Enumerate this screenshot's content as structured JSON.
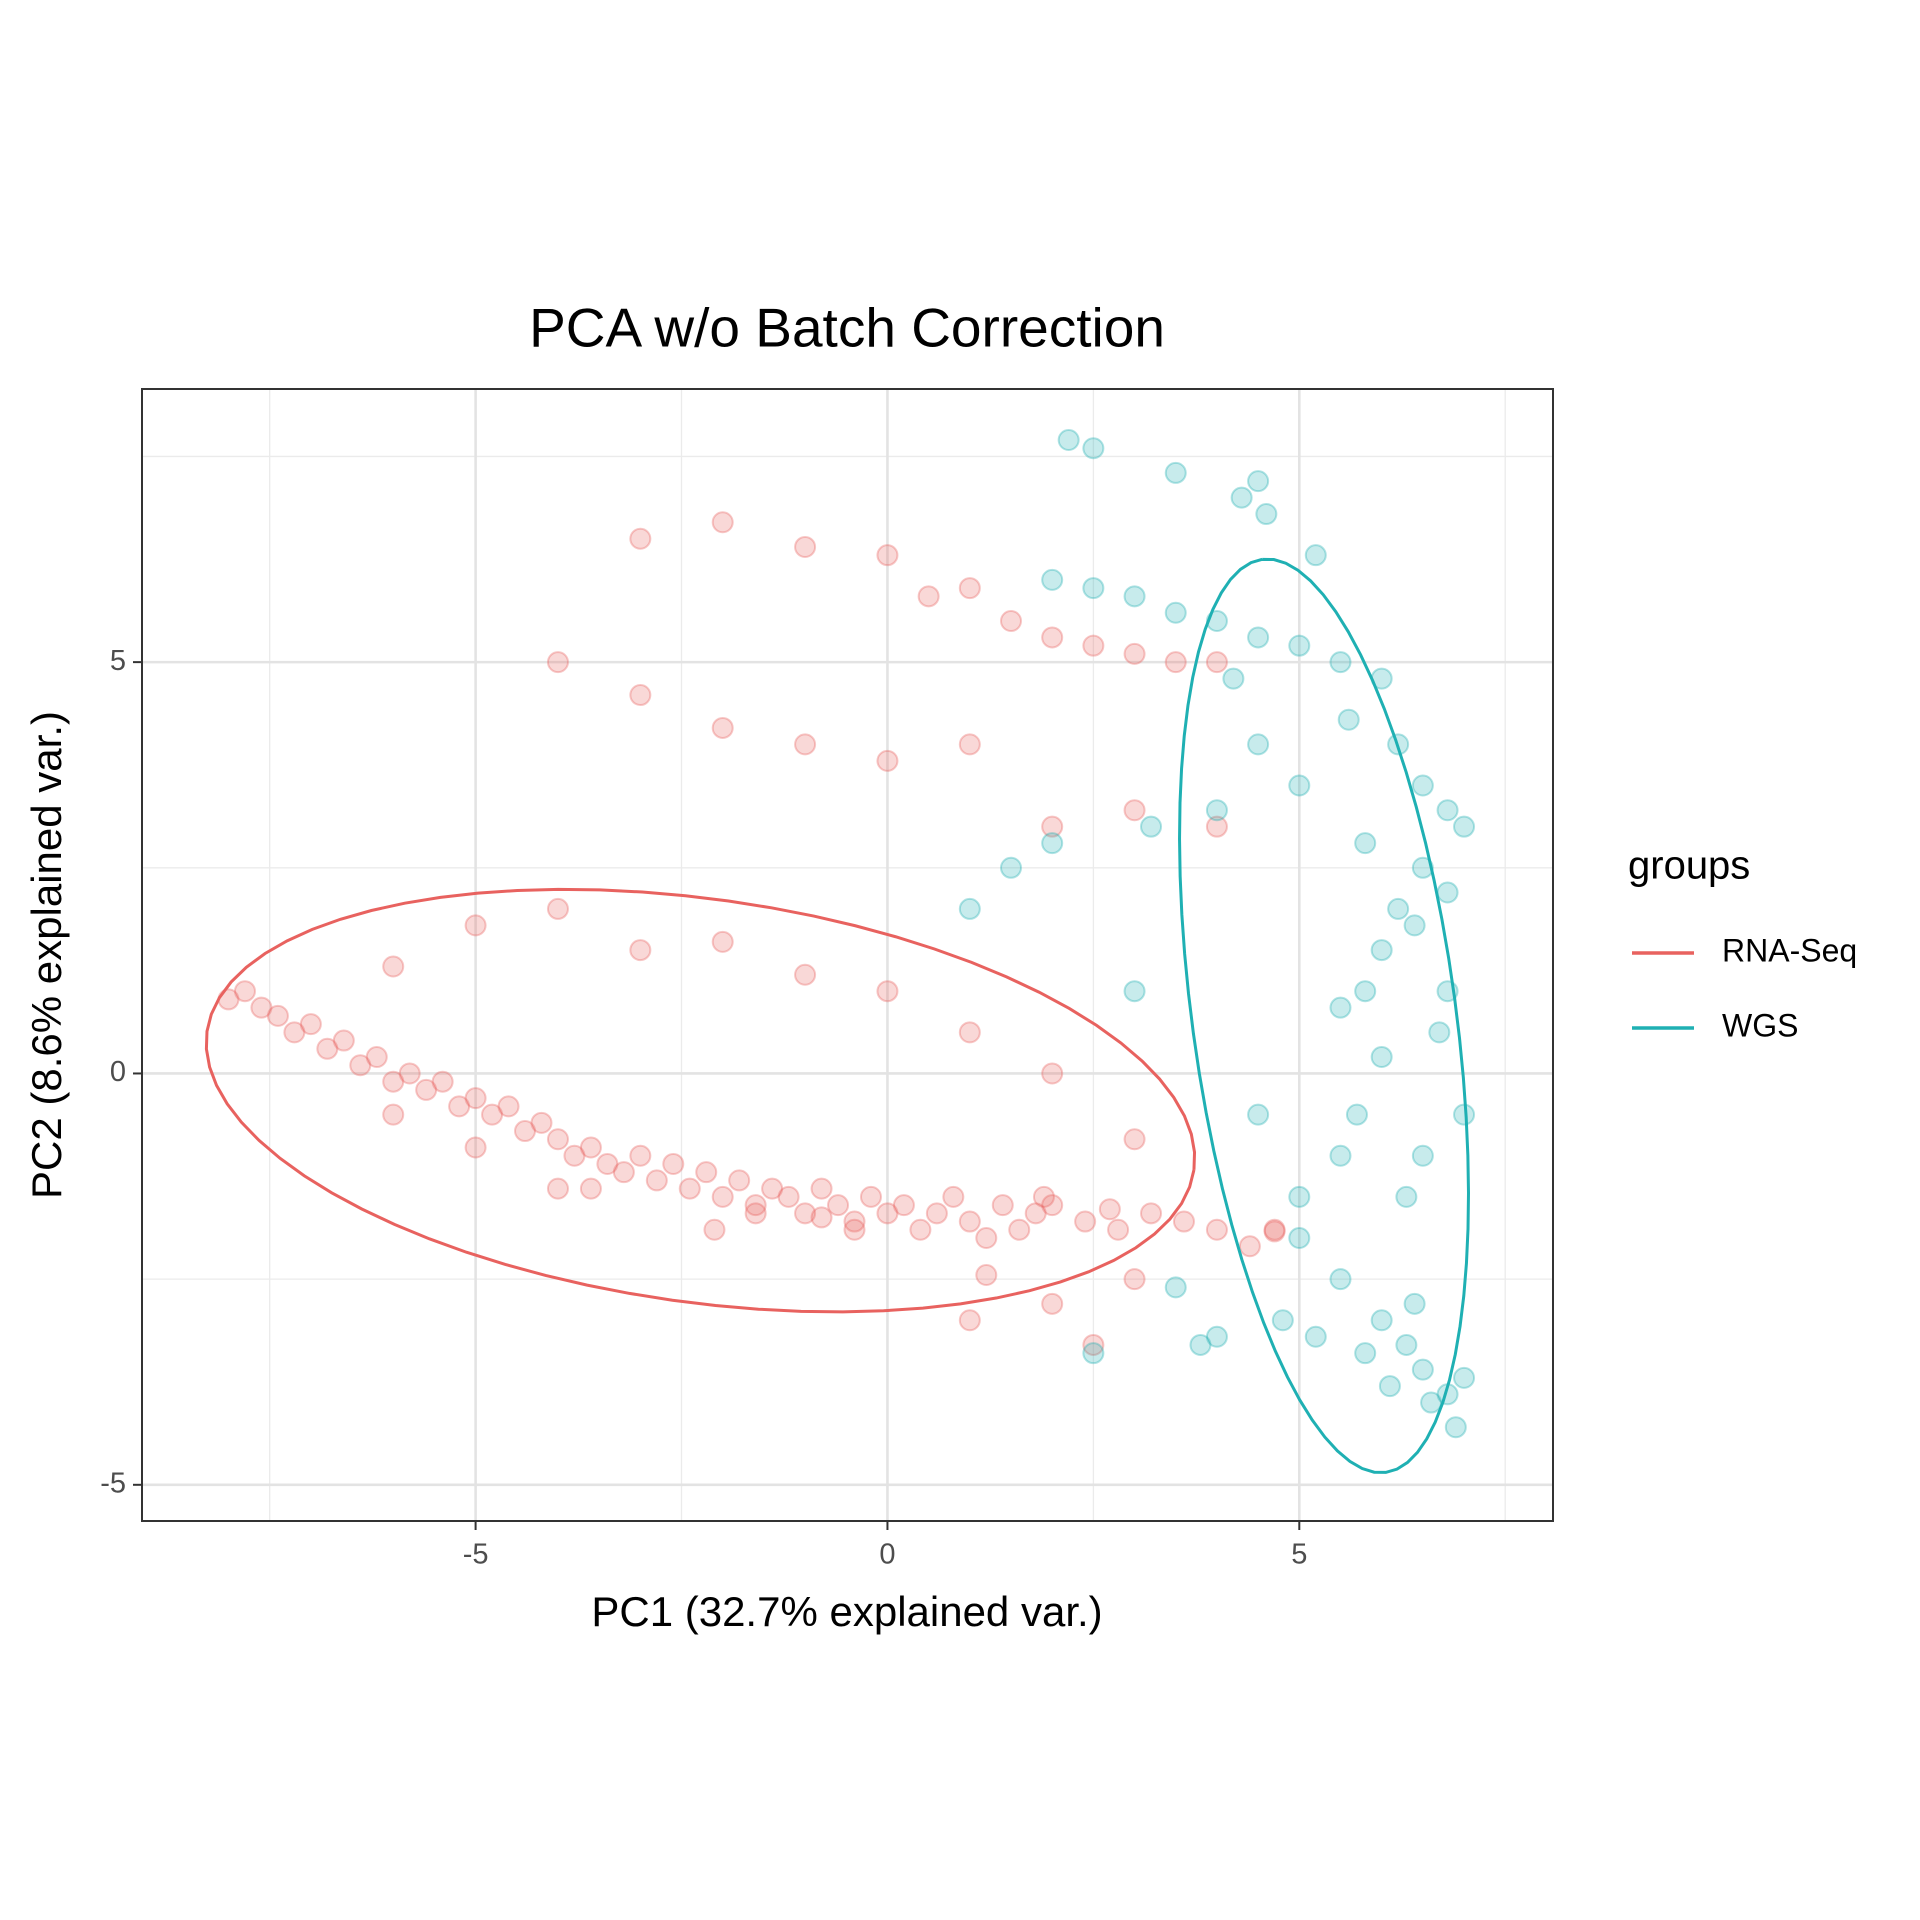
{
  "chart_data": {
    "type": "scatter",
    "title": "PCA w/o Batch Correction",
    "xlabel": "PC1 (32.7% explained var.)",
    "ylabel": "PC2 (8.6% explained var.)",
    "xlim": [
      -9.05,
      8.08
    ],
    "ylim": [
      -5.44,
      8.32
    ],
    "xticks": [
      -5,
      0,
      5
    ],
    "yticks": [
      -5,
      0,
      5
    ],
    "xminorticks": [
      -7.5,
      -2.5,
      2.5,
      7.5
    ],
    "yminorticks": [
      -2.5,
      2.5,
      7.5
    ],
    "grid": true,
    "alpha": 0.25,
    "legend_title": "groups",
    "legend": "right",
    "series": [
      {
        "name": "RNA-Seq",
        "color": "#E8625F",
        "x": [
          -8.0,
          -7.8,
          -7.6,
          -7.4,
          -7.2,
          -7.0,
          -6.8,
          -6.6,
          -6.4,
          -6.2,
          -6.0,
          -5.8,
          -5.6,
          -5.4,
          -5.2,
          -5.0,
          -4.8,
          -4.6,
          -4.4,
          -4.2,
          -4.0,
          -3.8,
          -3.6,
          -3.4,
          -3.2,
          -3.0,
          -2.8,
          -2.6,
          -2.4,
          -2.2,
          -2.0,
          -1.8,
          -1.6,
          -1.4,
          -1.2,
          -1.0,
          -0.8,
          -0.6,
          -0.4,
          -0.2,
          0.0,
          0.2,
          0.4,
          0.6,
          0.8,
          1.0,
          1.2,
          1.4,
          1.6,
          1.8,
          2.0,
          2.4,
          2.8,
          3.2,
          3.6,
          4.0,
          4.4,
          4.7,
          -3.6,
          -2.1,
          -1.6,
          -0.8,
          -0.4,
          1.2,
          1.9,
          2.7,
          4.7,
          -3,
          -2,
          -1,
          0,
          -4,
          -3,
          -2,
          -1,
          0,
          1,
          0.5,
          1,
          1.5,
          2,
          2.5,
          3,
          3.5,
          4,
          -6,
          -5,
          -4,
          -3,
          -2,
          -1,
          0,
          1,
          2,
          3,
          2,
          3,
          4,
          1,
          2,
          3,
          -5,
          -4,
          -6,
          2.5
        ],
        "values": [
          0.9,
          1.0,
          0.8,
          0.7,
          0.5,
          0.6,
          0.3,
          0.4,
          0.1,
          0.2,
          -0.1,
          0.0,
          -0.2,
          -0.1,
          -0.4,
          -0.3,
          -0.5,
          -0.4,
          -0.7,
          -0.6,
          -0.8,
          -1.0,
          -0.9,
          -1.1,
          -1.2,
          -1.0,
          -1.3,
          -1.1,
          -1.4,
          -1.2,
          -1.5,
          -1.3,
          -1.6,
          -1.4,
          -1.5,
          -1.7,
          -1.4,
          -1.6,
          -1.8,
          -1.5,
          -1.7,
          -1.6,
          -1.9,
          -1.7,
          -1.5,
          -1.8,
          -2.0,
          -1.6,
          -1.9,
          -1.7,
          -1.6,
          -1.8,
          -1.9,
          -1.7,
          -1.8,
          -1.9,
          -2.1,
          -1.9,
          -1.4,
          -1.9,
          -1.7,
          -1.75,
          -1.9,
          -2.45,
          -1.5,
          -1.65,
          -1.92,
          6.5,
          6.7,
          6.4,
          6.3,
          5.0,
          4.6,
          4.2,
          4.0,
          3.8,
          4.0,
          5.8,
          5.9,
          5.5,
          5.3,
          5.2,
          5.1,
          5.0,
          5.0,
          1.3,
          1.8,
          2.0,
          1.5,
          1.6,
          1.2,
          1.0,
          0.5,
          0.0,
          -0.8,
          3.0,
          3.2,
          3.0,
          -3.0,
          -2.8,
          -2.5,
          -0.9,
          -1.4,
          -0.5,
          -3.3
        ],
        "ellipse": {
          "center": [
            -2.27,
            -0.33
          ],
          "axes": [
            6.05,
            2.45
          ],
          "angle": -8
        }
      },
      {
        "name": "WGS",
        "color": "#1FB0B3",
        "x": [
          6.8,
          6.5,
          6.2,
          6.0,
          5.8,
          5.5,
          6.0,
          5.7,
          5.5,
          6.3,
          5.0,
          5.5,
          6.0,
          6.3,
          6.5,
          6.8,
          6.1,
          5.8,
          5.2,
          4.8,
          4.0,
          3.8,
          6.6,
          6.9,
          7.0,
          6.4,
          4,
          4.5,
          5,
          5.5,
          6,
          4.2,
          3.5,
          3,
          2.5,
          2,
          4.3,
          4.6,
          4.5,
          3.5,
          2.5,
          2.2,
          5.2,
          6.5,
          7.0,
          6.8,
          6.2,
          5.6,
          5.0,
          4.5,
          4.0,
          3.2,
          2.0,
          1.5,
          1.0,
          3.0,
          4.5,
          5.0,
          6.8,
          6.5,
          7.0,
          6.7,
          2.5,
          3.5,
          5.8,
          6.4
        ],
        "values": [
          3.2,
          2.5,
          2.0,
          1.5,
          1.0,
          0.8,
          0.2,
          -0.5,
          -1.0,
          -1.5,
          -2.0,
          -2.5,
          -3.0,
          -3.3,
          -3.6,
          -3.9,
          -3.8,
          -3.4,
          -3.2,
          -3.0,
          -3.2,
          -3.3,
          -4.0,
          -4.3,
          -3.7,
          -2.8,
          5.5,
          5.3,
          5.2,
          5.0,
          4.8,
          4.8,
          5.6,
          5.8,
          5.9,
          6.0,
          7.0,
          6.8,
          7.2,
          7.3,
          7.6,
          7.7,
          6.3,
          3.5,
          3.0,
          2.2,
          4.0,
          4.3,
          3.5,
          4.0,
          3.2,
          3.0,
          2.8,
          2.5,
          2.0,
          1.0,
          -0.5,
          -1.5,
          1.0,
          -1.0,
          -0.5,
          0.5,
          -3.4,
          -2.6,
          2.8,
          1.8
        ],
        "ellipse": {
          "center": [
            5.3,
            0.7
          ],
          "axes": [
            5.6,
            1.6
          ],
          "angle": 97.7
        }
      }
    ]
  }
}
